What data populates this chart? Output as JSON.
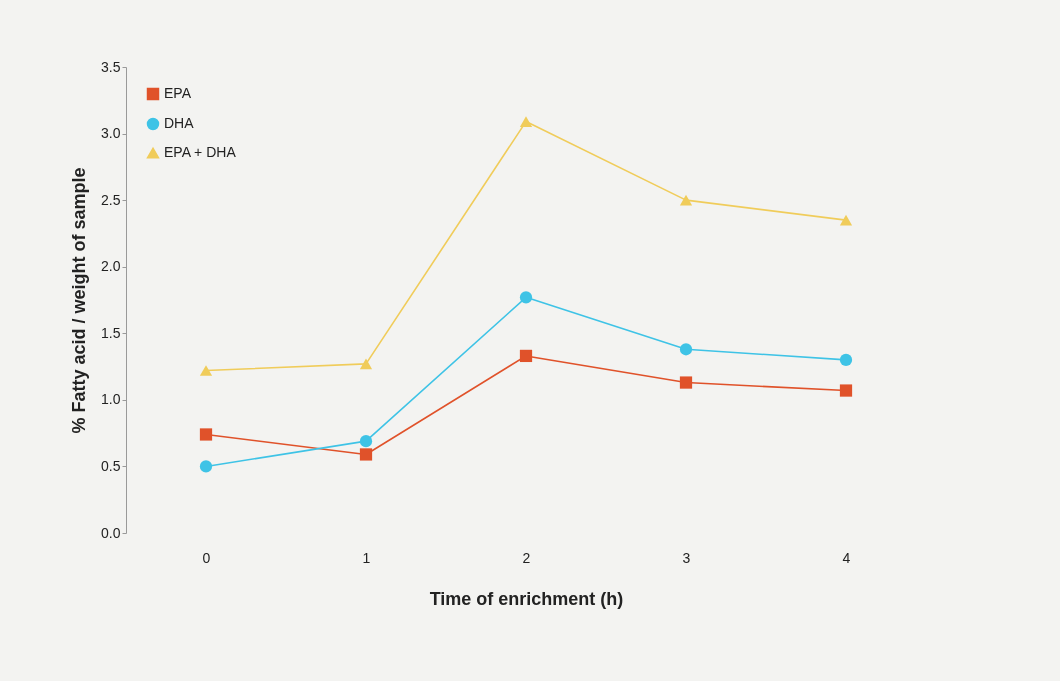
{
  "chart_data": {
    "type": "line",
    "xlabel": "Time of enrichment (h)",
    "ylabel": "% Fatty acid / weight of sample",
    "categories": [
      "0",
      "1",
      "2",
      "3",
      "4"
    ],
    "ylim": [
      0,
      3.5
    ],
    "yticks": [
      {
        "value": 0,
        "label": "0.0"
      },
      {
        "value": 0.5,
        "label": "0.5"
      },
      {
        "value": 1,
        "label": "1.0"
      },
      {
        "value": 1.5,
        "label": "1.5"
      },
      {
        "value": 2,
        "label": "2.0"
      },
      {
        "value": 2.5,
        "label": "2.5"
      },
      {
        "value": 3,
        "label": "3.0"
      },
      {
        "value": 3.5,
        "label": "3.5"
      }
    ],
    "grid": false,
    "legend": "top left",
    "line_style": "solid",
    "series": [
      {
        "name": "EPA",
        "color": "#e0522a",
        "marker": "square",
        "values": [
          0.74,
          0.59,
          1.33,
          1.13,
          1.07
        ]
      },
      {
        "name": "DHA",
        "color": "#3ec3e6",
        "marker": "circle",
        "values": [
          0.5,
          0.69,
          1.77,
          1.38,
          1.3
        ]
      },
      {
        "name": "EPA + DHA",
        "color": "#f0cc5a",
        "marker": "triangle",
        "values": [
          1.22,
          1.27,
          3.09,
          2.5,
          2.35
        ]
      }
    ]
  }
}
